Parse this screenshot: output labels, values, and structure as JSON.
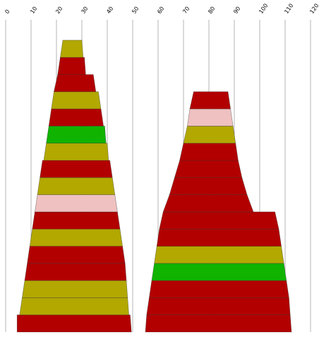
{
  "chart_data": {
    "type": "area",
    "title": "",
    "xlabel": "",
    "ylabel": "",
    "xlim": [
      0,
      120
    ],
    "grid": "vertical",
    "legend": "none",
    "x_ticks": [
      "0",
      "10",
      "20",
      "30",
      "40",
      "50",
      "60",
      "70",
      "80",
      "90",
      "100",
      "110",
      "120"
    ],
    "colors": {
      "red": "#b20000",
      "olive": "#b2a800",
      "green": "#10b300",
      "pink": "#efc1c1",
      "grid": "#b4b4b4"
    },
    "series": [
      {
        "bands": [
          {
            "color": "red",
            "left": [
              4.5,
              4.5
            ],
            "right": [
              49.5,
              49.0
            ]
          },
          {
            "color": "olive",
            "left": [
              5.5,
              6.5
            ],
            "right": [
              48.5,
              48.0
            ]
          },
          {
            "color": "olive",
            "left": [
              6.5,
              7.5
            ],
            "right": [
              48.0,
              47.5
            ]
          },
          {
            "color": "red",
            "left": [
              7.5,
              8.5
            ],
            "right": [
              47.5,
              47.0
            ]
          },
          {
            "color": "red",
            "left": [
              8.5,
              9.5
            ],
            "right": [
              47.0,
              46.0
            ]
          },
          {
            "color": "olive",
            "left": [
              9.5,
              10.5
            ],
            "right": [
              46.0,
              45.0
            ]
          },
          {
            "color": "red",
            "left": [
              10.5,
              11.5
            ],
            "right": [
              45.0,
              44.0
            ]
          },
          {
            "color": "pink",
            "left": [
              11.5,
              12.5
            ],
            "right": [
              44.0,
              43.0
            ]
          },
          {
            "color": "olive",
            "left": [
              12.5,
              13.5
            ],
            "right": [
              43.0,
              42.0
            ]
          },
          {
            "color": "red",
            "left": [
              13.5,
              14.5
            ],
            "right": [
              42.0,
              41.0
            ]
          },
          {
            "color": "olive",
            "left": [
              15.0,
              16.0
            ],
            "right": [
              40.5,
              40.0
            ]
          },
          {
            "color": "green",
            "left": [
              16.0,
              17.0
            ],
            "right": [
              39.5,
              39.0
            ]
          },
          {
            "color": "red",
            "left": [
              17.0,
              18.0
            ],
            "right": [
              38.5,
              37.5
            ]
          },
          {
            "color": "olive",
            "left": [
              18.0,
              19.0
            ],
            "right": [
              37.5,
              36.5
            ]
          },
          {
            "color": "red",
            "left": [
              19.0,
              20.5
            ],
            "right": [
              35.5,
              34.5
            ]
          },
          {
            "color": "red",
            "left": [
              20.5,
              21.5
            ],
            "right": [
              31.5,
              31.0
            ]
          },
          {
            "color": "olive",
            "left": [
              21.5,
              22.5
            ],
            "right": [
              30.5,
              30.0
            ]
          }
        ]
      },
      {
        "bands": [
          {
            "color": "red",
            "left": [
              55.0,
              55.5
            ],
            "right": [
              112.5,
              112.0
            ]
          },
          {
            "color": "red",
            "left": [
              55.5,
              56.5
            ],
            "right": [
              112.0,
              111.5
            ]
          },
          {
            "color": "red",
            "left": [
              56.5,
              57.5
            ],
            "right": [
              111.5,
              110.5
            ]
          },
          {
            "color": "green",
            "left": [
              57.5,
              58.5
            ],
            "right": [
              110.5,
              109.5
            ]
          },
          {
            "color": "olive",
            "left": [
              58.5,
              59.5
            ],
            "right": [
              109.5,
              108.5
            ]
          },
          {
            "color": "red",
            "left": [
              59.5,
              60.5
            ],
            "right": [
              108.5,
              107.5
            ]
          },
          {
            "color": "red",
            "left": [
              60.5,
              62.0
            ],
            "right": [
              107.5,
              106.0
            ]
          },
          {
            "color": "red",
            "left": [
              62.0,
              64.5
            ],
            "right": [
              97.5,
              95.0
            ]
          },
          {
            "color": "red",
            "left": [
              64.5,
              66.5
            ],
            "right": [
              95.0,
              93.0
            ]
          },
          {
            "color": "red",
            "left": [
              66.5,
              68.5
            ],
            "right": [
              93.0,
              91.5
            ]
          },
          {
            "color": "red",
            "left": [
              68.5,
              70.0
            ],
            "right": [
              91.5,
              90.5
            ]
          },
          {
            "color": "olive",
            "left": [
              70.0,
              71.5
            ],
            "right": [
              90.5,
              89.5
            ]
          },
          {
            "color": "pink",
            "left": [
              71.5,
              72.5
            ],
            "right": [
              89.5,
              88.5
            ]
          },
          {
            "color": "red",
            "left": [
              72.5,
              74.0
            ],
            "right": [
              88.5,
              87.5
            ]
          }
        ]
      }
    ]
  }
}
